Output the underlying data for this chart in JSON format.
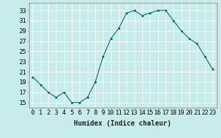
{
  "x": [
    0,
    1,
    2,
    3,
    4,
    5,
    6,
    7,
    8,
    9,
    10,
    11,
    12,
    13,
    14,
    15,
    16,
    17,
    18,
    19,
    20,
    21,
    22,
    23
  ],
  "y": [
    20,
    18.5,
    17,
    16,
    17,
    15,
    15,
    16,
    19,
    24,
    27.5,
    29.5,
    32.5,
    33,
    32,
    32.5,
    33,
    33,
    31,
    29,
    27.5,
    26.5,
    24,
    21.5
  ],
  "line_color": "#006666",
  "marker_color": "#006666",
  "bg_color": "#c8ecec",
  "grid_color": "#b0d8d8",
  "grid_major_color": "#ffffff",
  "xlabel": "Humidex (Indice chaleur)",
  "xlim": [
    -0.5,
    23.5
  ],
  "ylim": [
    14,
    34.5
  ],
  "yticks": [
    15,
    17,
    19,
    21,
    23,
    25,
    27,
    29,
    31,
    33
  ],
  "xtick_labels": [
    "0",
    "1",
    "2",
    "3",
    "4",
    "5",
    "6",
    "7",
    "8",
    "9",
    "10",
    "11",
    "12",
    "13",
    "14",
    "15",
    "16",
    "17",
    "18",
    "19",
    "20",
    "21",
    "22",
    "23"
  ],
  "label_fontsize": 7,
  "tick_fontsize": 6.5
}
